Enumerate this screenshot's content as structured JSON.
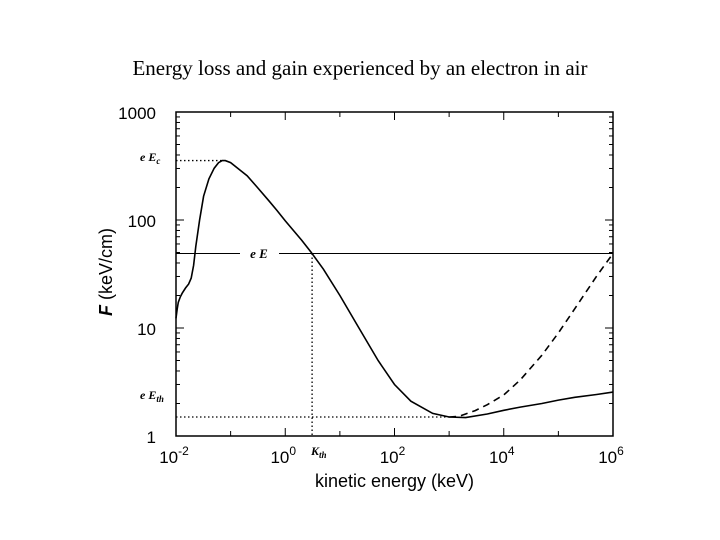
{
  "title": "Energy loss and gain experienced by an electron in air",
  "chart_data": {
    "type": "line",
    "title": "Energy loss and gain experienced by an electron in air",
    "xlabel": "kinetic energy (keV)",
    "ylabel": "F (keV/cm)",
    "ylabel_symbol": "F",
    "ylabel_rest": " (keV/cm)",
    "xscale": "log",
    "yscale": "log",
    "xlim": [
      0.01,
      1000000
    ],
    "ylim": [
      1,
      1000
    ],
    "grid": false,
    "x_ticks": [
      {
        "base": "10",
        "exp": "-2",
        "value": 0.01
      },
      {
        "base": "10",
        "exp": "0",
        "value": 1
      },
      {
        "base": "10",
        "exp": "2",
        "value": 100
      },
      {
        "base": "10",
        "exp": "4",
        "value": 10000
      },
      {
        "base": "10",
        "exp": "6",
        "value": 1000000
      }
    ],
    "y_ticks": [
      {
        "label": "1",
        "value": 1
      },
      {
        "label": "10",
        "value": 10
      },
      {
        "label": "100",
        "value": 100
      },
      {
        "label": "1000",
        "value": 1000
      }
    ],
    "series": [
      {
        "name": "F (solid)",
        "style": "solid",
        "points": [
          [
            0.01,
            12.3
          ],
          [
            0.0105,
            15
          ],
          [
            0.011,
            17.3
          ],
          [
            0.012,
            19.4
          ],
          [
            0.013,
            21
          ],
          [
            0.015,
            23.5
          ],
          [
            0.017,
            25.5
          ],
          [
            0.019,
            29
          ],
          [
            0.021,
            38
          ],
          [
            0.023,
            57
          ],
          [
            0.027,
            100
          ],
          [
            0.032,
            166
          ],
          [
            0.04,
            240
          ],
          [
            0.05,
            302
          ],
          [
            0.06,
            339
          ],
          [
            0.07,
            355
          ],
          [
            0.08,
            355
          ],
          [
            0.1,
            340
          ],
          [
            0.15,
            289
          ],
          [
            0.2,
            257
          ],
          [
            0.3,
            204
          ],
          [
            0.5,
            151
          ],
          [
            0.7,
            123
          ],
          [
            1,
            98
          ],
          [
            2,
            65
          ],
          [
            3,
            50
          ],
          [
            5,
            35
          ],
          [
            10,
            20
          ],
          [
            20,
            11
          ],
          [
            50,
            5
          ],
          [
            100,
            3
          ],
          [
            200,
            2.1
          ],
          [
            500,
            1.62
          ],
          [
            1000,
            1.5
          ],
          [
            2000,
            1.48
          ],
          [
            5000,
            1.6
          ],
          [
            10000,
            1.73
          ],
          [
            20000,
            1.85
          ],
          [
            50000,
            2.0
          ],
          [
            100000,
            2.15
          ],
          [
            200000,
            2.28
          ],
          [
            500000,
            2.42
          ],
          [
            1000000,
            2.55
          ]
        ]
      },
      {
        "name": "F (dashed)",
        "style": "dashed",
        "points": [
          [
            1000,
            1.5
          ],
          [
            1500,
            1.52
          ],
          [
            2000,
            1.6
          ],
          [
            3000,
            1.72
          ],
          [
            5000,
            1.95
          ],
          [
            10000,
            2.4
          ],
          [
            20000,
            3.3
          ],
          [
            50000,
            5.6
          ],
          [
            100000,
            9.0
          ],
          [
            200000,
            15.1
          ],
          [
            500000,
            30.2
          ],
          [
            1000000,
            49
          ]
        ]
      }
    ],
    "reference_lines": [
      {
        "name": "eE",
        "type": "horizontal",
        "y": 49,
        "style": "solid"
      },
      {
        "name": "eEc",
        "type": "horizontal",
        "y": 355,
        "style": "dotted",
        "x_end": 0.07
      },
      {
        "name": "eEth",
        "type": "horizontal",
        "y": 1.5,
        "style": "dotted",
        "x_end": 1000
      },
      {
        "name": "Kth",
        "type": "vertical",
        "x": 3.1,
        "style": "dotted",
        "y_end": 49
      }
    ],
    "annotations": {
      "eEc": {
        "prefix": "e E",
        "sub": "c"
      },
      "eE": {
        "text": "e E"
      },
      "eEth": {
        "prefix": "e E",
        "sub": "th"
      },
      "Kth": {
        "prefix": "K",
        "sub": "th"
      }
    }
  }
}
